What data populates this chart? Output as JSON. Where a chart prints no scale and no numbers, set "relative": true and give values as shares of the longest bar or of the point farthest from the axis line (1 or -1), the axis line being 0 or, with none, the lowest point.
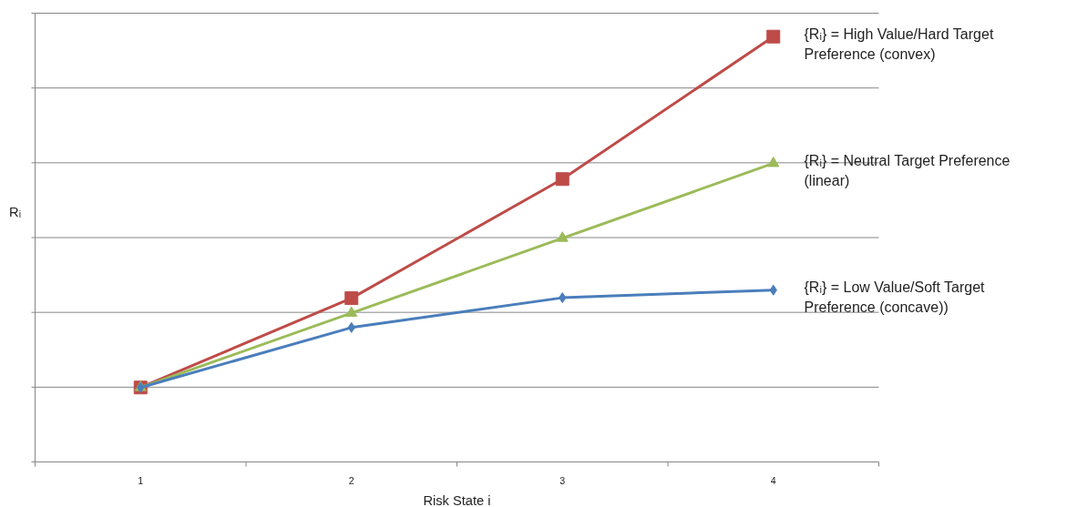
{
  "chart_data": {
    "type": "line",
    "relative": true,
    "xlabel": "Risk State i",
    "ylabel": "Rᵢ",
    "categories": [
      "1",
      "2",
      "3",
      "4"
    ],
    "grid": "y",
    "legend": false,
    "line_style": "solid",
    "series": [
      {
        "name": "{Rᵢ} = High Value/Hard Target Preference (convex)",
        "color": "#be4b48",
        "marker": "square",
        "values": [
          0.175,
          0.385,
          0.665,
          1
        ]
      },
      {
        "name": "{Rᵢ} = Neutral Target Preference (linear)",
        "color": "#9bbb59",
        "marker": "triangle",
        "values": [
          0.175,
          0.35,
          0.526,
          0.702
        ]
      },
      {
        "name": "{Rᵢ} = Low Value/Soft Target Preference (concave))",
        "color": "#4a7ebb",
        "marker": "diamond",
        "values": [
          0.175,
          0.316,
          0.386,
          0.404
        ]
      }
    ]
  }
}
